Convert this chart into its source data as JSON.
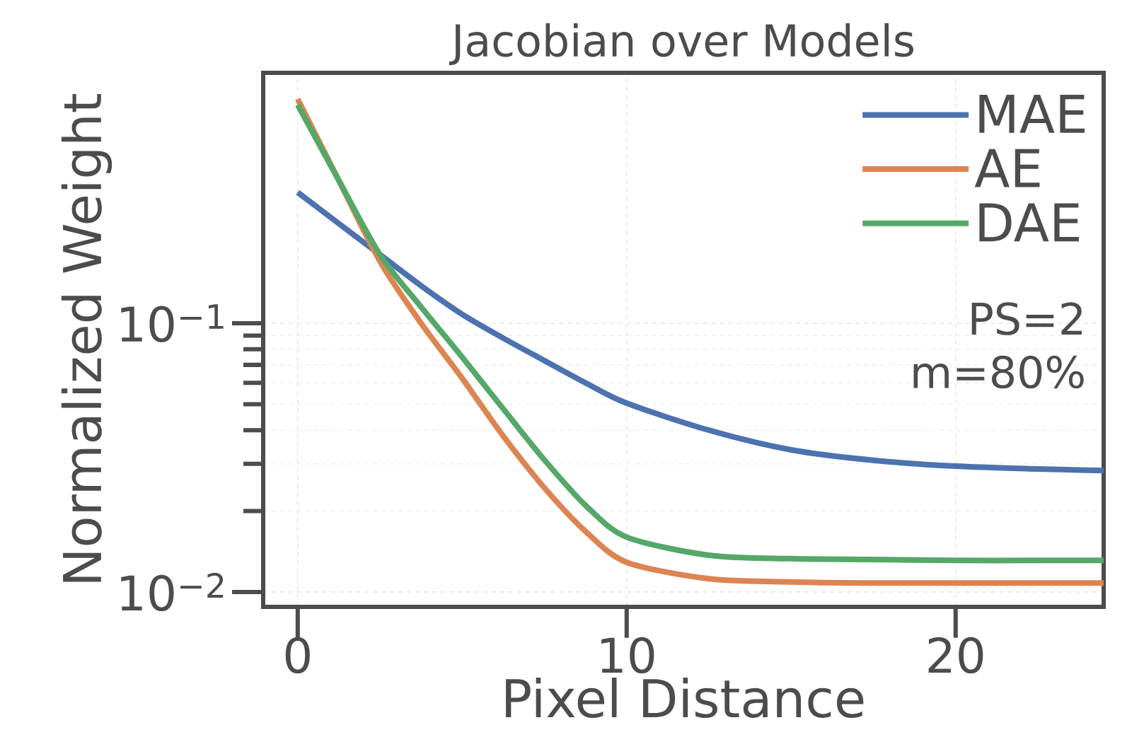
{
  "chart_data": {
    "type": "line",
    "title": "Jacobian over Models",
    "xlabel": "Pixel Distance",
    "ylabel": "Normalized Weight",
    "x": [
      0,
      1.25,
      2.5,
      3.75,
      5,
      6.25,
      7.5,
      8.75,
      10,
      12.5,
      15,
      17.5,
      20,
      22.5,
      24.5
    ],
    "series": [
      {
        "name": "MAE",
        "color": "#4c72b0",
        "values": [
          0.307,
          0.235,
          0.18,
          0.138,
          0.108,
          0.088,
          0.0726,
          0.06,
          0.0504,
          0.04,
          0.0338,
          0.0309,
          0.0294,
          0.0287,
          0.0283
        ]
      },
      {
        "name": "AE",
        "color": "#dd8452",
        "values": [
          0.683,
          0.34,
          0.17,
          0.1,
          0.0624,
          0.038,
          0.0244,
          0.0168,
          0.0129,
          0.0112,
          0.0109,
          0.0108,
          0.0108,
          0.0108,
          0.0108
        ]
      },
      {
        "name": "DAE",
        "color": "#55a868",
        "values": [
          0.65,
          0.34,
          0.18,
          0.115,
          0.0748,
          0.048,
          0.031,
          0.021,
          0.016,
          0.0137,
          0.0133,
          0.0132,
          0.0131,
          0.0131,
          0.0131
        ]
      }
    ],
    "xlim": [
      -1.05,
      24.5
    ],
    "ylim": [
      0.0088,
      0.855
    ],
    "xticks": [
      0,
      10,
      20
    ],
    "yticks": [
      {
        "value": 0.01,
        "label": "10$^{−2}$"
      },
      {
        "value": 0.1,
        "label": "10$^{−1}$"
      }
    ],
    "log": true,
    "grid": true,
    "legend": "top right",
    "line_style": "solid",
    "annotations": [
      "PS=2",
      "m=80%"
    ]
  }
}
